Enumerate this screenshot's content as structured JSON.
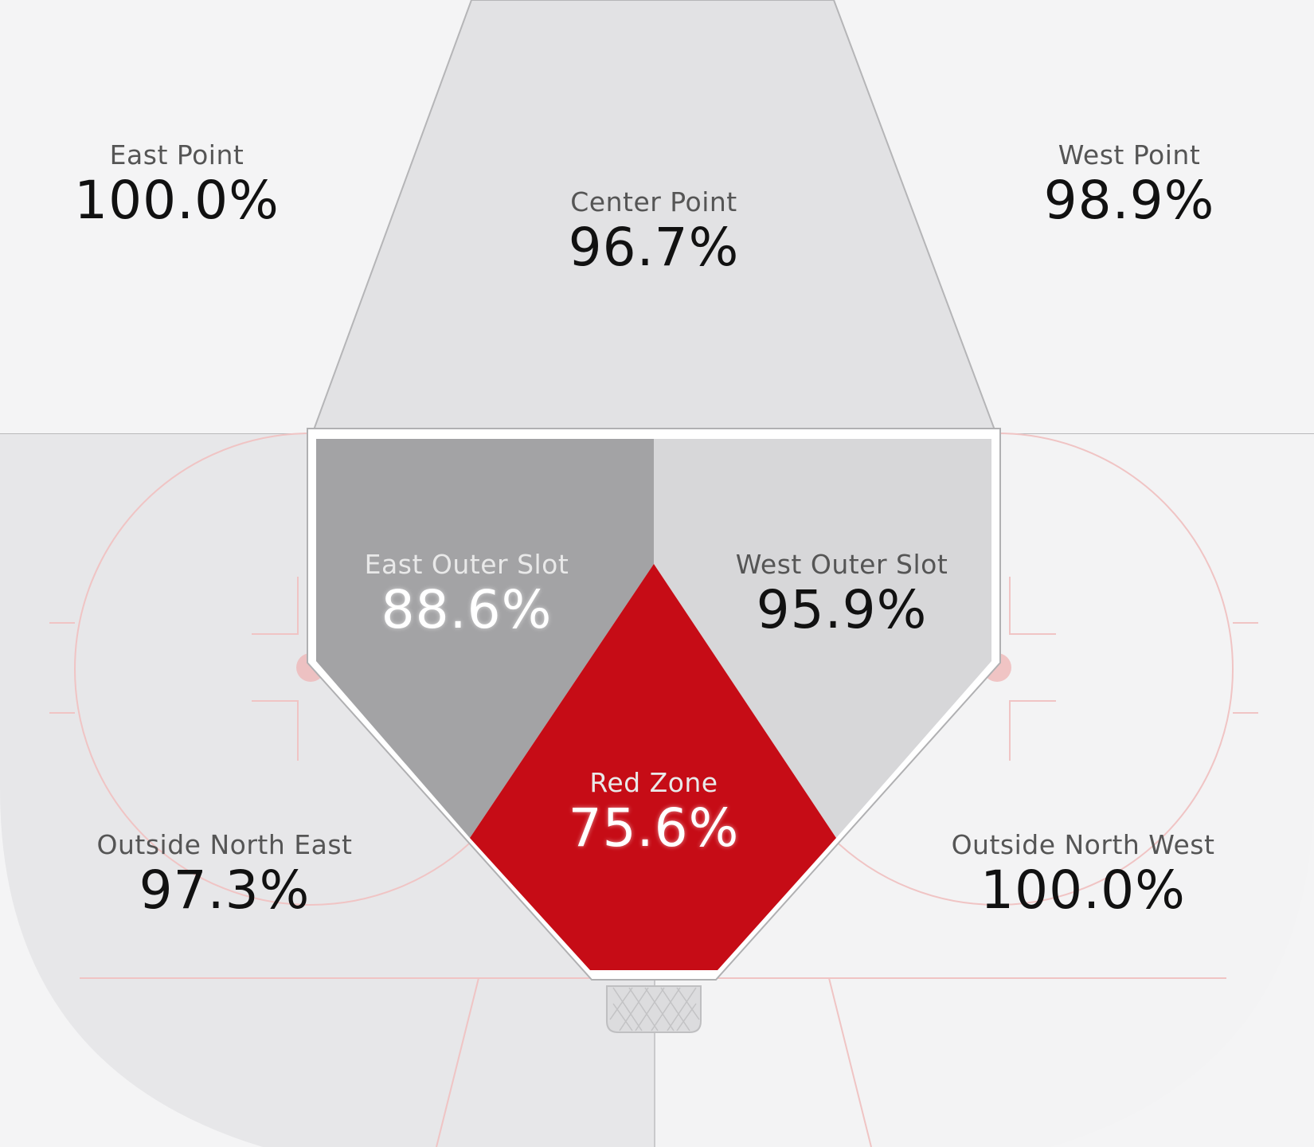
{
  "colors": {
    "background": "#f4f4f5",
    "center_point": "#e2e2e4",
    "outside_north_east": "#e7e7e9",
    "outside_north_west": "#f3f3f4",
    "east_outer_slot": "#a3a3a5",
    "west_outer_slot": "#d7d7d9",
    "red_zone": "#c60c16",
    "rink_lines": "#f0c4c4",
    "slot_border": "#ffffff"
  },
  "zones": {
    "east_point": {
      "name": "East Point",
      "value": "100.0%"
    },
    "center_point": {
      "name": "Center Point",
      "value": "96.7%"
    },
    "west_point": {
      "name": "West Point",
      "value": "98.9%"
    },
    "east_outer_slot": {
      "name": "East Outer Slot",
      "value": "88.6%"
    },
    "west_outer_slot": {
      "name": "West Outer Slot",
      "value": "95.9%"
    },
    "red_zone": {
      "name": "Red Zone",
      "value": "75.6%"
    },
    "outside_north_east": {
      "name": "Outside North East",
      "value": "97.3%"
    },
    "outside_north_west": {
      "name": "Outside North West",
      "value": "100.0%"
    }
  }
}
